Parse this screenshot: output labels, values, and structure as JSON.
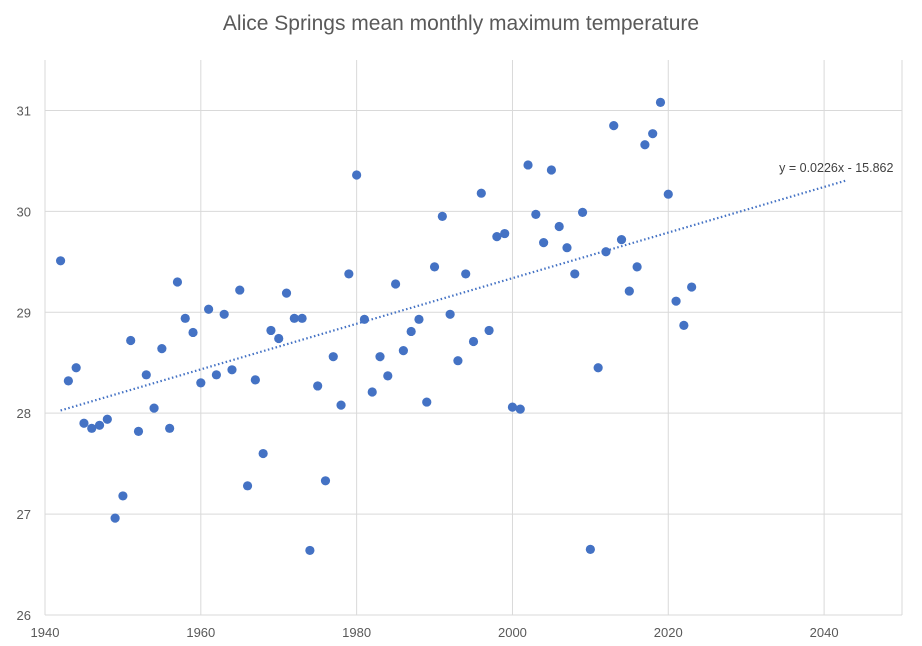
{
  "chart_data": {
    "type": "scatter",
    "title": "Alice Springs mean monthly maximum temperature",
    "xlabel": "",
    "ylabel": "",
    "xlim": [
      1940,
      2050
    ],
    "ylim": [
      26,
      31.5
    ],
    "xticks": [
      1940,
      1960,
      1980,
      2000,
      2020,
      2040
    ],
    "yticks": [
      26,
      27,
      28,
      29,
      30,
      31
    ],
    "grid": true,
    "legend": "none",
    "marker_color": "#4472C4",
    "series": [
      {
        "x": [
          1942,
          1943,
          1944,
          1945,
          1946,
          1947,
          1948,
          1949,
          1950,
          1951,
          1952,
          1953,
          1954,
          1955,
          1956,
          1957,
          1958,
          1959,
          1960,
          1961,
          1962,
          1963,
          1964,
          1965,
          1966,
          1967,
          1968,
          1969,
          1970,
          1971,
          1972,
          1973,
          1974,
          1975,
          1976,
          1977,
          1978,
          1979,
          1980,
          1981,
          1982,
          1983,
          1984,
          1985,
          1986,
          1987,
          1988,
          1989,
          1990,
          1991,
          1992,
          1993,
          1994,
          1995,
          1996,
          1997,
          1998,
          1999,
          2000,
          2001,
          2002,
          2003,
          2004,
          2005,
          2006,
          2007,
          2008,
          2009,
          2010,
          2011,
          2012,
          2013,
          2014,
          2015,
          2016,
          2017,
          2018,
          2019,
          2020,
          2021,
          2022,
          2023
        ],
        "y": [
          29.51,
          28.32,
          28.45,
          27.9,
          27.85,
          27.88,
          27.94,
          26.96,
          27.18,
          28.72,
          27.82,
          28.38,
          28.05,
          28.64,
          27.85,
          29.3,
          28.94,
          28.8,
          28.3,
          29.03,
          28.38,
          28.98,
          28.43,
          29.22,
          27.28,
          28.33,
          27.6,
          28.82,
          28.74,
          29.19,
          28.94,
          28.94,
          26.64,
          28.27,
          27.33,
          28.56,
          28.08,
          29.38,
          30.36,
          28.93,
          28.21,
          28.56,
          28.37,
          29.28,
          28.62,
          28.81,
          28.93,
          28.11,
          29.45,
          29.95,
          28.98,
          28.52,
          29.38,
          28.71,
          30.18,
          28.82,
          29.75,
          29.78,
          28.06,
          28.04,
          30.46,
          29.97,
          29.69,
          30.41,
          29.85,
          29.64,
          29.38,
          29.99,
          26.65,
          28.45,
          29.6,
          30.85,
          29.72,
          29.21,
          29.45,
          30.66,
          30.77,
          31.08,
          30.17,
          29.11,
          28.87,
          29.25
        ]
      }
    ],
    "trendline": {
      "style": "dotted",
      "color": "#4472C4",
      "x_start": 1942,
      "x_end": 2043,
      "slope": 0.0226,
      "intercept": -15.862,
      "label": "y = 0.0226x - 15.862"
    }
  }
}
